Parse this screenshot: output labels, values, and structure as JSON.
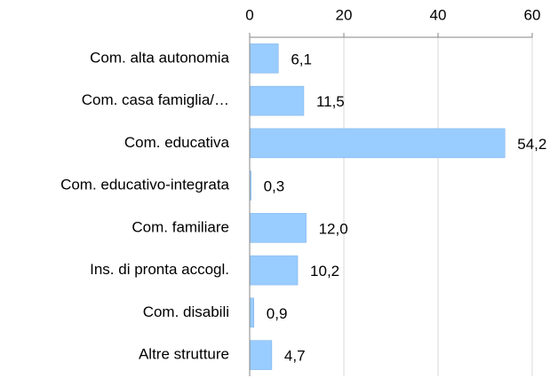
{
  "chart_data": {
    "type": "bar",
    "orientation": "horizontal",
    "categories": [
      "Com. alta autonomia",
      "Com. casa famiglia/…",
      "Com. educativa",
      "Com. educativo-integrata",
      "Com. familiare",
      "Ins. di pronta accogl.",
      "Com. disabili",
      "Altre strutture"
    ],
    "values": [
      6.1,
      11.5,
      54.2,
      0.3,
      12.0,
      10.2,
      0.9,
      4.7
    ],
    "value_labels": [
      "6,1",
      "11,5",
      "54,2",
      "0,3",
      "12,0",
      "10,2",
      "0,9",
      "4,7"
    ],
    "color": "#99ccff",
    "xlim": [
      0,
      60
    ],
    "xticks": [
      0,
      20,
      40,
      60
    ],
    "grid": true
  }
}
